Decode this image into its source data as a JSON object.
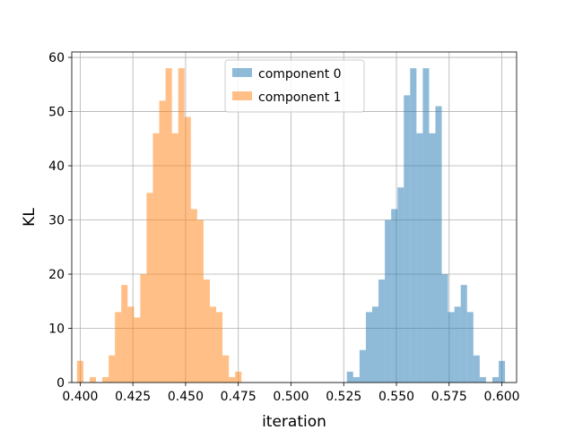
{
  "chart_data": {
    "type": "bar",
    "subtype": "histogram",
    "title": "",
    "xlabel": "iteration",
    "ylabel": "KL",
    "xlim": [
      0.396,
      0.607
    ],
    "ylim": [
      0,
      61
    ],
    "xticks": [
      "0.400",
      "0.425",
      "0.450",
      "0.475",
      "0.500",
      "0.525",
      "0.550",
      "0.575",
      "0.600"
    ],
    "yticks": [
      "0",
      "10",
      "20",
      "30",
      "40",
      "50",
      "60"
    ],
    "grid": true,
    "legend_position": "top-center",
    "bin_width": 0.003,
    "series": [
      {
        "name": "component 0",
        "color": "#1f77b4",
        "alpha": 0.5,
        "bins": [
          {
            "x": 0.528,
            "count": 2
          },
          {
            "x": 0.531,
            "count": 1
          },
          {
            "x": 0.534,
            "count": 6
          },
          {
            "x": 0.537,
            "count": 13
          },
          {
            "x": 0.54,
            "count": 14
          },
          {
            "x": 0.543,
            "count": 19
          },
          {
            "x": 0.546,
            "count": 30
          },
          {
            "x": 0.549,
            "count": 32
          },
          {
            "x": 0.552,
            "count": 36
          },
          {
            "x": 0.555,
            "count": 53
          },
          {
            "x": 0.558,
            "count": 58
          },
          {
            "x": 0.561,
            "count": 46
          },
          {
            "x": 0.564,
            "count": 58
          },
          {
            "x": 0.567,
            "count": 46
          },
          {
            "x": 0.57,
            "count": 51
          },
          {
            "x": 0.573,
            "count": 20
          },
          {
            "x": 0.576,
            "count": 13
          },
          {
            "x": 0.579,
            "count": 14
          },
          {
            "x": 0.582,
            "count": 18
          },
          {
            "x": 0.585,
            "count": 13
          },
          {
            "x": 0.588,
            "count": 5
          },
          {
            "x": 0.591,
            "count": 1
          },
          {
            "x": 0.594,
            "count": 0
          },
          {
            "x": 0.597,
            "count": 1
          },
          {
            "x": 0.6,
            "count": 4
          }
        ]
      },
      {
        "name": "component 1",
        "color": "#ff7f0e",
        "alpha": 0.5,
        "bins": [
          {
            "x": 0.4,
            "count": 4
          },
          {
            "x": 0.403,
            "count": 0
          },
          {
            "x": 0.406,
            "count": 1
          },
          {
            "x": 0.409,
            "count": 0
          },
          {
            "x": 0.412,
            "count": 1
          },
          {
            "x": 0.415,
            "count": 5
          },
          {
            "x": 0.418,
            "count": 13
          },
          {
            "x": 0.421,
            "count": 18
          },
          {
            "x": 0.424,
            "count": 14
          },
          {
            "x": 0.427,
            "count": 12
          },
          {
            "x": 0.43,
            "count": 20
          },
          {
            "x": 0.433,
            "count": 35
          },
          {
            "x": 0.436,
            "count": 46
          },
          {
            "x": 0.439,
            "count": 52
          },
          {
            "x": 0.442,
            "count": 58
          },
          {
            "x": 0.445,
            "count": 46
          },
          {
            "x": 0.448,
            "count": 58
          },
          {
            "x": 0.451,
            "count": 49
          },
          {
            "x": 0.454,
            "count": 32
          },
          {
            "x": 0.457,
            "count": 30
          },
          {
            "x": 0.46,
            "count": 19
          },
          {
            "x": 0.463,
            "count": 14
          },
          {
            "x": 0.466,
            "count": 13
          },
          {
            "x": 0.469,
            "count": 5
          },
          {
            "x": 0.472,
            "count": 1
          },
          {
            "x": 0.475,
            "count": 2
          }
        ]
      }
    ]
  }
}
